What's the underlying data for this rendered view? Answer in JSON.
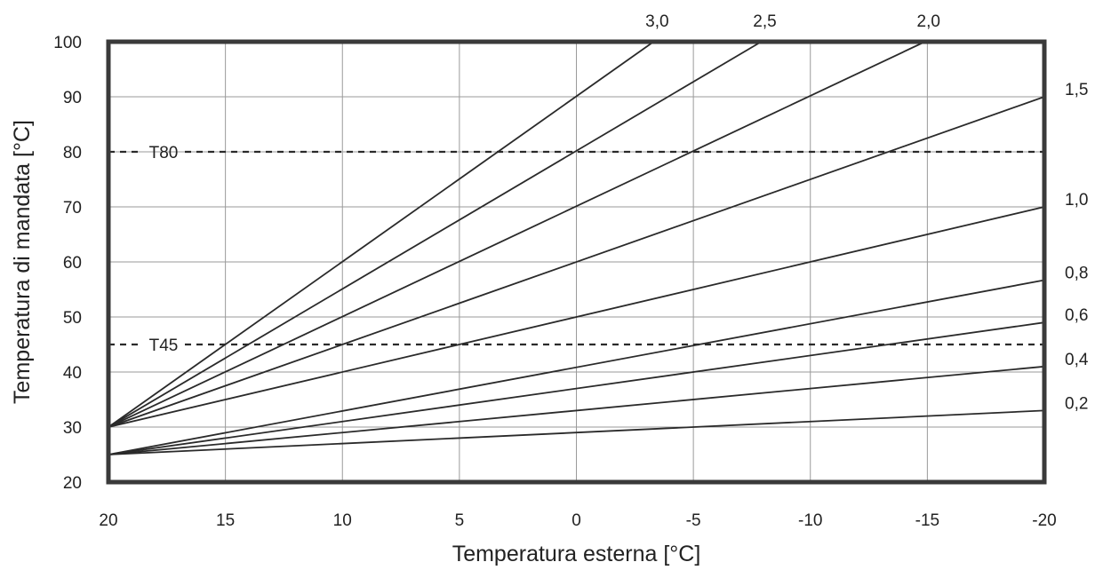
{
  "chart_data": {
    "type": "line",
    "title": "",
    "xlabel": "Temperatura esterna [°C]",
    "ylabel": "Temperatura di mandata [°C]",
    "xlim": [
      20,
      -20
    ],
    "ylim": [
      20,
      100
    ],
    "x_reversed": true,
    "x_ticks": [
      20,
      15,
      10,
      5,
      0,
      -5,
      -10,
      -15,
      -20
    ],
    "x_tick_labels": [
      "20",
      "15",
      "10",
      "5",
      "0",
      "-5",
      "-10",
      "-15",
      "-20"
    ],
    "y_ticks": [
      20,
      30,
      40,
      50,
      60,
      70,
      80,
      90,
      100
    ],
    "y_tick_labels": [
      "20",
      "30",
      "40",
      "50",
      "60",
      "70",
      "80",
      "90",
      "100"
    ],
    "grid": true,
    "reference_lines": [
      {
        "label": "T80",
        "y": 80
      },
      {
        "label": "T45",
        "y": 45
      }
    ],
    "series": [
      {
        "name": "3,0",
        "x": [
          20,
          -3.3
        ],
        "y": [
          30,
          100
        ]
      },
      {
        "name": "2,5",
        "x": [
          20,
          -7.9
        ],
        "y": [
          30,
          100
        ]
      },
      {
        "name": "2,0",
        "x": [
          20,
          -14.9
        ],
        "y": [
          30,
          100
        ]
      },
      {
        "name": "1,5",
        "x": [
          20,
          -20
        ],
        "y": [
          30,
          90
        ]
      },
      {
        "name": "1,0",
        "x": [
          20,
          -20
        ],
        "y": [
          30,
          70
        ]
      },
      {
        "name": "0,8",
        "x": [
          20,
          -20
        ],
        "y": [
          25,
          56.7
        ]
      },
      {
        "name": "0,6",
        "x": [
          20,
          -20
        ],
        "y": [
          25,
          49
        ]
      },
      {
        "name": "0,4",
        "x": [
          20,
          -20
        ],
        "y": [
          25,
          41
        ]
      },
      {
        "name": "0,2",
        "x": [
          20,
          -20
        ],
        "y": [
          25,
          33
        ]
      }
    ]
  }
}
